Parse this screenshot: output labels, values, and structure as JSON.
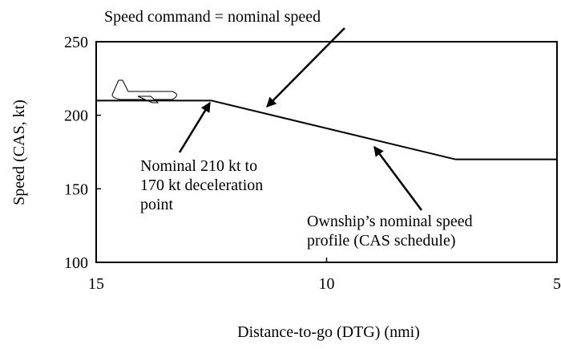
{
  "chart_data": {
    "type": "line",
    "x_label": "Distance-to-go (DTG)  (nmi)",
    "y_label": "Speed  (CAS, kt)",
    "x": [
      15,
      12.5,
      7.2,
      5
    ],
    "series": [
      {
        "color": "#000000",
        "values": [
          210,
          210,
          170,
          170
        ]
      }
    ],
    "xlim": [
      15,
      5
    ],
    "xticks": [
      15,
      10,
      5
    ],
    "ylim": [
      100,
      250
    ],
    "yticks": [
      100,
      150,
      200,
      250
    ],
    "annotations": [
      [
        "Speed command = nominal speed"
      ],
      [
        "Nominal 210 kt to",
        "170 kt deceleration",
        "point"
      ],
      [
        "Ownship’s nominal speed",
        "profile (CAS schedule)"
      ]
    ]
  }
}
